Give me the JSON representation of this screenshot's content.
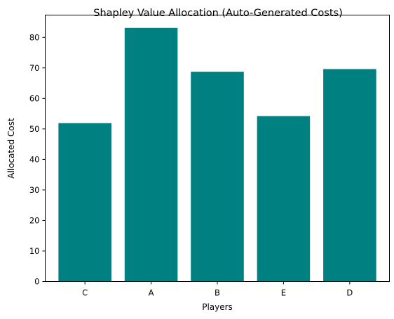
{
  "chart_data": {
    "type": "bar",
    "title": "Shapley Value Allocation (Auto-Generated Costs)",
    "xlabel": "Players",
    "ylabel": "Allocated Cost",
    "categories": [
      "C",
      "A",
      "B",
      "E",
      "D"
    ],
    "values": [
      51.9,
      83.1,
      68.7,
      54.2,
      69.6
    ],
    "ylim": [
      0,
      87.3
    ],
    "yticks": [
      0,
      10,
      20,
      30,
      40,
      50,
      60,
      70,
      80
    ],
    "bar_color": "#008080",
    "grid": false,
    "legend": "none"
  }
}
